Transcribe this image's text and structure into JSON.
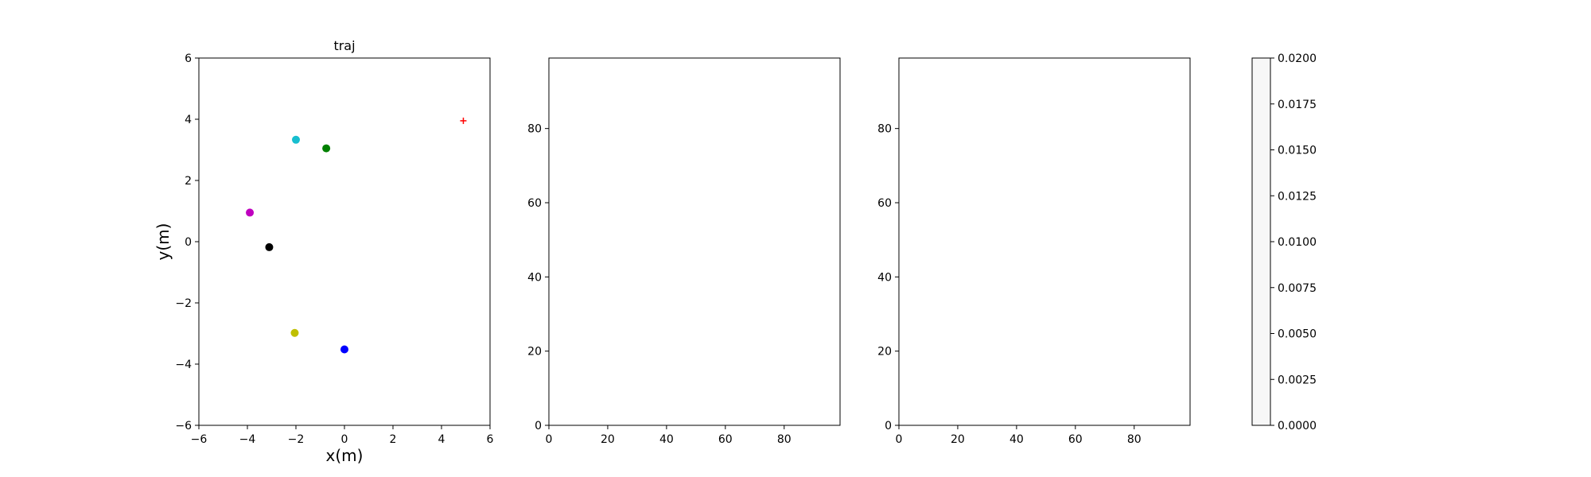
{
  "chart_data": [
    {
      "type": "scatter",
      "title": "traj",
      "xlabel": "x(m)",
      "ylabel": "y(m)",
      "xlim": [
        -6,
        6
      ],
      "ylim": [
        -6,
        6
      ],
      "xticks": [
        "−6",
        "−4",
        "−2",
        "0",
        "2",
        "4",
        "6"
      ],
      "yticks": [
        "−6",
        "−4",
        "−2",
        "0",
        "2",
        "4",
        "6"
      ],
      "grid": false,
      "points": [
        {
          "x": -2.0,
          "y": 3.33,
          "color": "#17becf",
          "marker": "circle"
        },
        {
          "x": -0.75,
          "y": 3.05,
          "color": "#008000",
          "marker": "circle"
        },
        {
          "x": -3.9,
          "y": 0.95,
          "color": "#bf00bf",
          "marker": "circle"
        },
        {
          "x": -3.1,
          "y": -0.18,
          "color": "#000000",
          "marker": "circle"
        },
        {
          "x": -2.05,
          "y": -2.98,
          "color": "#bfbf00",
          "marker": "circle"
        },
        {
          "x": 0.0,
          "y": -3.52,
          "color": "#0000ff",
          "marker": "circle"
        },
        {
          "x": 4.9,
          "y": 3.95,
          "color": "#ff0000",
          "marker": "plus"
        }
      ]
    },
    {
      "type": "heatmap",
      "title": "",
      "xlim": [
        0,
        99
      ],
      "ylim": [
        0,
        99
      ],
      "xticks": [
        "0",
        "20",
        "40",
        "60",
        "80"
      ],
      "yticks": [
        "0",
        "20",
        "40",
        "60",
        "80"
      ],
      "grid": false,
      "values": []
    },
    {
      "type": "heatmap",
      "title": "",
      "xlim": [
        0,
        99
      ],
      "ylim": [
        0,
        99
      ],
      "xticks": [
        "0",
        "20",
        "40",
        "60",
        "80"
      ],
      "yticks": [
        "0",
        "20",
        "40",
        "60",
        "80"
      ],
      "grid": false,
      "values": []
    }
  ],
  "colorbar": {
    "range": [
      0.0,
      0.02
    ],
    "ticks": [
      "0.0000",
      "0.0025",
      "0.0050",
      "0.0075",
      "0.0100",
      "0.0125",
      "0.0150",
      "0.0175",
      "0.0200"
    ],
    "fill_color": "#f7f7f7"
  }
}
